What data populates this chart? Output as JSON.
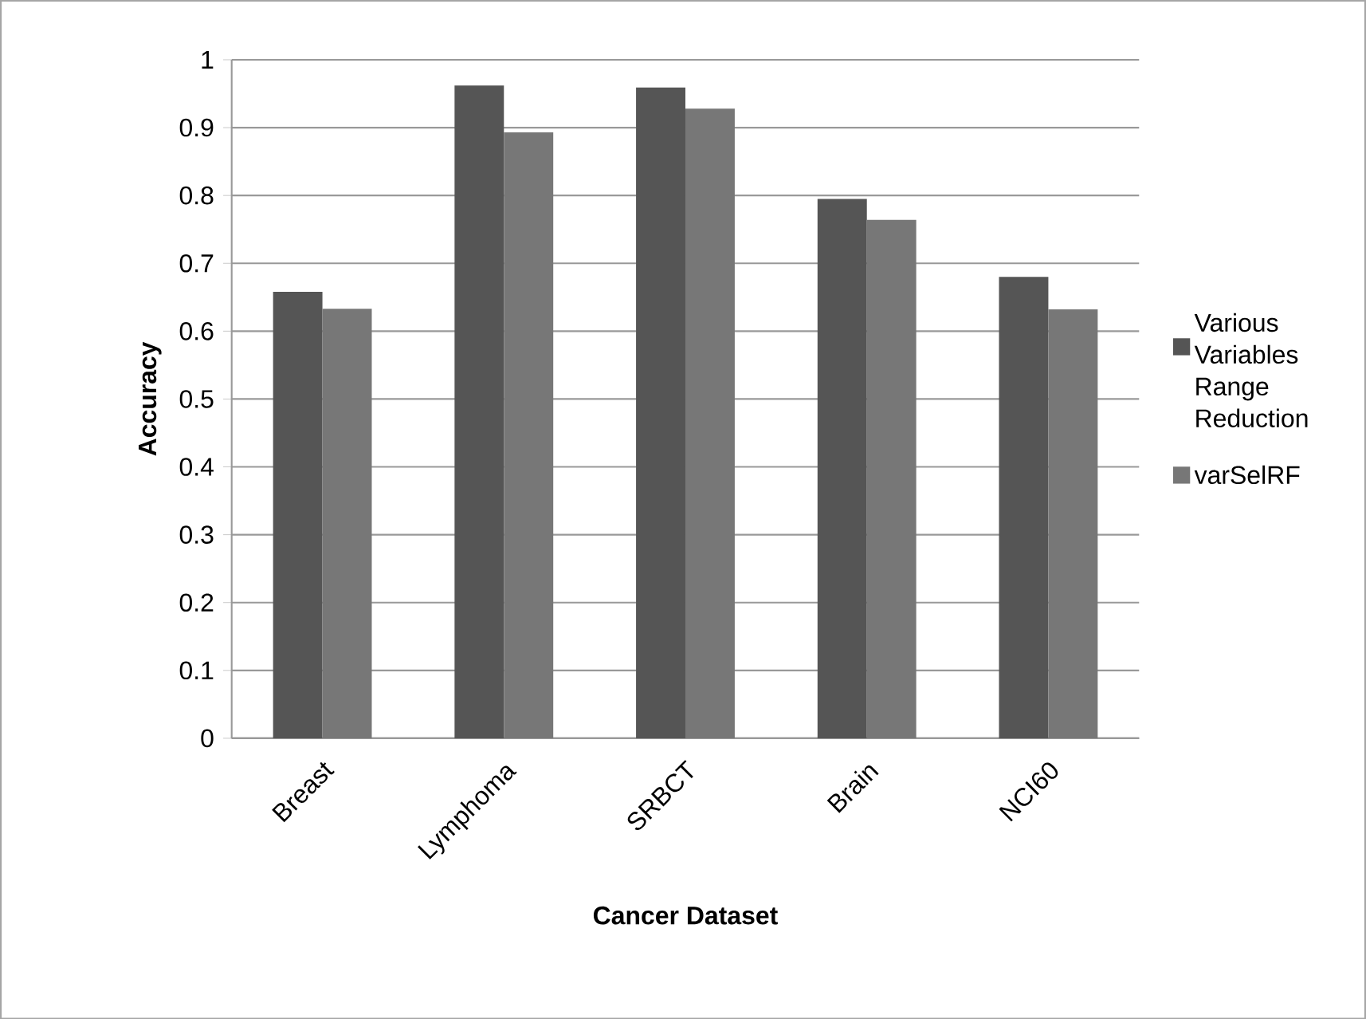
{
  "chart_data": {
    "type": "bar",
    "xlabel": "Cancer Dataset",
    "ylabel": "Accuracy",
    "categories": [
      "Breast",
      "Lymphoma",
      "SRBCT",
      "Brain",
      "NCI60"
    ],
    "series": [
      {
        "name": "Various Variables Range Reduction",
        "color": "#555555",
        "values": [
          0.658,
          0.962,
          0.959,
          0.795,
          0.68
        ]
      },
      {
        "name": "varSelRF",
        "color": "#777777",
        "values": [
          0.633,
          0.893,
          0.928,
          0.764,
          0.632
        ]
      }
    ],
    "ylim": [
      0,
      1
    ],
    "yticks": [
      0,
      0.1,
      0.2,
      0.3,
      0.4,
      0.5,
      0.6,
      0.7,
      0.8,
      0.9,
      1
    ],
    "grid": "y",
    "legend": "right"
  }
}
